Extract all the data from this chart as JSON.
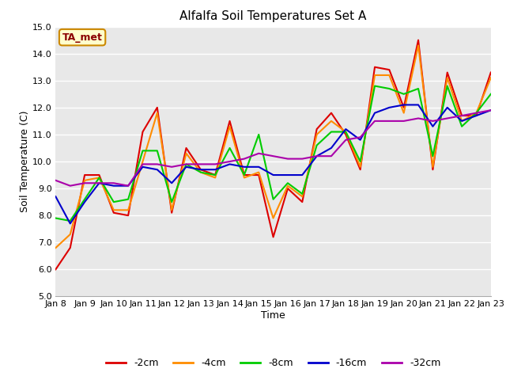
{
  "title": "Alfalfa Soil Temperatures Set A",
  "xlabel": "Time",
  "ylabel": "Soil Temperature (C)",
  "ylim": [
    5.0,
    15.0
  ],
  "yticks": [
    5.0,
    6.0,
    7.0,
    8.0,
    9.0,
    10.0,
    11.0,
    12.0,
    13.0,
    14.0,
    15.0
  ],
  "ytick_labels": [
    "5.0",
    "6.0",
    "7.0",
    "8.0",
    "9.0",
    "10.0",
    "11.0",
    "12.0",
    "13.0",
    "14.0",
    "15.0"
  ],
  "colors": {
    "-2cm": "#dd0000",
    "-4cm": "#ff8c00",
    "-8cm": "#00cc00",
    "-16cm": "#0000cc",
    "-32cm": "#aa00aa"
  },
  "legend_label": "TA_met",
  "x_tick_labels": [
    "Jan 8",
    "Jan 9",
    "Jan 10",
    "Jan 11",
    "Jan 12",
    "Jan 13",
    "Jan 14",
    "Jan 15",
    "Jan 16",
    "Jan 17",
    "Jan 18",
    "Jan 19",
    "Jan 20",
    "Jan 21",
    "Jan 22",
    "Jan 23"
  ],
  "figure_bg": "#ffffff",
  "plot_bg": "#e8e8e8",
  "grid_color": "#ffffff",
  "series": {
    "-2cm": [
      6.0,
      6.8,
      9.5,
      9.5,
      8.1,
      8.0,
      11.1,
      12.0,
      8.1,
      10.5,
      9.7,
      9.5,
      11.5,
      9.5,
      9.5,
      7.2,
      9.0,
      8.5,
      11.2,
      11.8,
      11.0,
      9.7,
      13.5,
      13.4,
      12.0,
      14.5,
      9.7,
      13.3,
      11.7,
      11.7,
      13.3
    ],
    "-4cm": [
      6.8,
      7.3,
      9.3,
      9.4,
      8.2,
      8.2,
      10.0,
      11.8,
      8.2,
      10.3,
      9.6,
      9.4,
      11.3,
      9.4,
      9.6,
      7.9,
      9.1,
      8.7,
      11.0,
      11.5,
      11.1,
      9.8,
      13.2,
      13.2,
      11.8,
      14.3,
      9.8,
      13.1,
      11.5,
      11.8,
      13.1
    ],
    "-8cm": [
      7.9,
      7.8,
      8.6,
      9.4,
      8.5,
      8.6,
      10.4,
      10.4,
      8.5,
      9.9,
      9.6,
      9.5,
      10.5,
      9.5,
      11.0,
      8.6,
      9.2,
      8.8,
      10.6,
      11.1,
      11.1,
      10.0,
      12.8,
      12.7,
      12.5,
      12.7,
      10.2,
      12.8,
      11.3,
      11.8,
      12.5
    ],
    "-16cm": [
      8.7,
      7.7,
      8.5,
      9.2,
      9.1,
      9.1,
      9.8,
      9.7,
      9.2,
      9.8,
      9.7,
      9.7,
      9.9,
      9.8,
      9.8,
      9.5,
      9.5,
      9.5,
      10.2,
      10.5,
      11.2,
      10.8,
      11.8,
      12.0,
      12.1,
      12.1,
      11.3,
      12.0,
      11.5,
      11.7,
      11.9
    ],
    "-32cm": [
      9.3,
      9.1,
      9.2,
      9.2,
      9.2,
      9.1,
      9.9,
      9.9,
      9.8,
      9.9,
      9.9,
      9.9,
      10.0,
      10.1,
      10.3,
      10.2,
      10.1,
      10.1,
      10.2,
      10.2,
      10.8,
      10.9,
      11.5,
      11.5,
      11.5,
      11.6,
      11.5,
      11.6,
      11.7,
      11.8,
      11.9
    ]
  }
}
